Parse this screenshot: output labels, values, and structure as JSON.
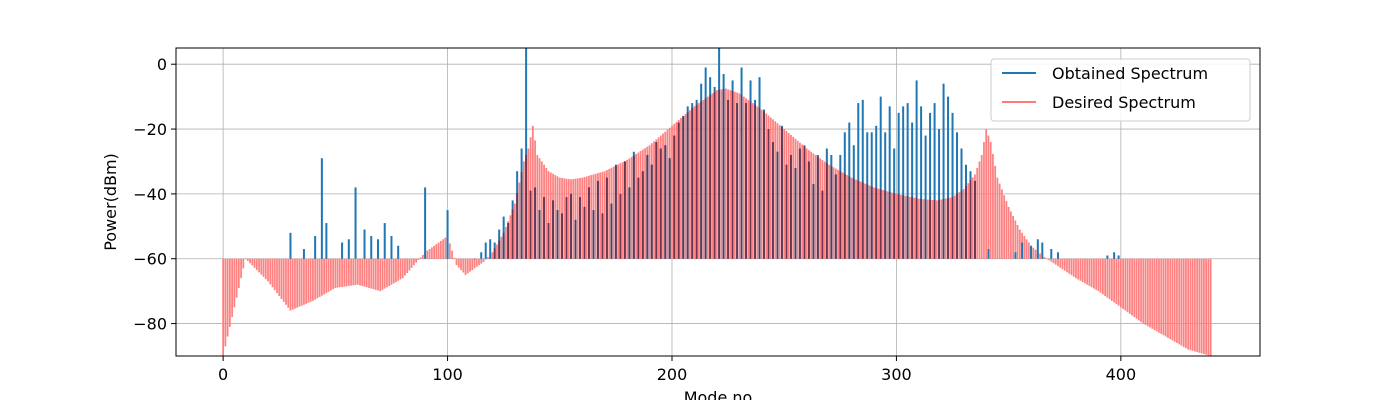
{
  "chart_data": {
    "type": "bar",
    "title": "",
    "xlabel": "Mode no",
    "ylabel": "Power(dBm)",
    "xlim": [
      -21,
      462
    ],
    "ylim": [
      -90,
      5
    ],
    "baseline": -60,
    "xticks": [
      0,
      100,
      200,
      300,
      400
    ],
    "yticks": [
      -80,
      -60,
      -40,
      -20,
      0
    ],
    "tick_labels_x": [
      "0",
      "100",
      "200",
      "300",
      "400"
    ],
    "tick_labels_y": [
      "−80",
      "−60",
      "−40",
      "−20",
      "0"
    ],
    "grid": true,
    "legend_position": "top-right",
    "series": [
      {
        "name": "Obtained Spectrum",
        "color": "#1f77b4",
        "style": "bars",
        "points": [
          [
            30,
            -52
          ],
          [
            36,
            -57
          ],
          [
            41,
            -53
          ],
          [
            44,
            -29
          ],
          [
            46,
            -49
          ],
          [
            53,
            -55
          ],
          [
            56,
            -54
          ],
          [
            59,
            -38
          ],
          [
            63,
            -51
          ],
          [
            66,
            -53
          ],
          [
            69,
            -54
          ],
          [
            72,
            -49
          ],
          [
            75,
            -53
          ],
          [
            78,
            -56
          ],
          [
            90,
            -38
          ],
          [
            100,
            -45
          ],
          [
            112,
            -60
          ],
          [
            115,
            -58
          ],
          [
            117,
            -55
          ],
          [
            119,
            -54
          ],
          [
            121,
            -55
          ],
          [
            123,
            -51
          ],
          [
            125,
            -47
          ],
          [
            127,
            -49
          ],
          [
            129,
            -42
          ],
          [
            131,
            -33
          ],
          [
            133,
            -26
          ],
          [
            135,
            5
          ],
          [
            137,
            -39
          ],
          [
            139,
            -38
          ],
          [
            141,
            -45
          ],
          [
            143,
            -41
          ],
          [
            145,
            -49
          ],
          [
            147,
            -42
          ],
          [
            149,
            -45
          ],
          [
            151,
            -46
          ],
          [
            153,
            -41
          ],
          [
            155,
            -40
          ],
          [
            157,
            -48
          ],
          [
            159,
            -41
          ],
          [
            161,
            -44
          ],
          [
            163,
            -38
          ],
          [
            165,
            -45
          ],
          [
            167,
            -36
          ],
          [
            169,
            -46
          ],
          [
            171,
            -35
          ],
          [
            173,
            -43
          ],
          [
            175,
            -31
          ],
          [
            177,
            -40
          ],
          [
            179,
            -30
          ],
          [
            181,
            -38
          ],
          [
            183,
            -27
          ],
          [
            185,
            -35
          ],
          [
            187,
            -33
          ],
          [
            189,
            -28
          ],
          [
            191,
            -31
          ],
          [
            193,
            -24
          ],
          [
            195,
            -26
          ],
          [
            197,
            -25
          ],
          [
            199,
            -29
          ],
          [
            201,
            -22
          ],
          [
            203,
            -18
          ],
          [
            205,
            -16
          ],
          [
            207,
            -13
          ],
          [
            209,
            -12
          ],
          [
            211,
            -11
          ],
          [
            213,
            -6
          ],
          [
            215,
            -1
          ],
          [
            217,
            -4
          ],
          [
            219,
            -7
          ],
          [
            221,
            5
          ],
          [
            223,
            -3
          ],
          [
            225,
            -11
          ],
          [
            227,
            -5
          ],
          [
            229,
            -12
          ],
          [
            231,
            -1
          ],
          [
            233,
            -12
          ],
          [
            235,
            -5
          ],
          [
            237,
            -11
          ],
          [
            239,
            -4
          ],
          [
            241,
            -14
          ],
          [
            243,
            -20
          ],
          [
            245,
            -24
          ],
          [
            247,
            -27
          ],
          [
            249,
            -19
          ],
          [
            251,
            -31
          ],
          [
            253,
            -28
          ],
          [
            255,
            -32
          ],
          [
            257,
            -26
          ],
          [
            259,
            -25
          ],
          [
            261,
            -30
          ],
          [
            263,
            -37
          ],
          [
            265,
            -28
          ],
          [
            267,
            -39
          ],
          [
            269,
            -26
          ],
          [
            271,
            -28
          ],
          [
            273,
            -34
          ],
          [
            275,
            -28
          ],
          [
            277,
            -21
          ],
          [
            279,
            -18
          ],
          [
            281,
            -25
          ],
          [
            283,
            -12
          ],
          [
            285,
            -11
          ],
          [
            287,
            -21
          ],
          [
            289,
            -21
          ],
          [
            291,
            -19
          ],
          [
            293,
            -10
          ],
          [
            295,
            -21
          ],
          [
            297,
            -13
          ],
          [
            299,
            -26
          ],
          [
            301,
            -15
          ],
          [
            303,
            -13
          ],
          [
            305,
            -12
          ],
          [
            307,
            -18
          ],
          [
            309,
            -5
          ],
          [
            311,
            -13
          ],
          [
            313,
            -22
          ],
          [
            315,
            -15
          ],
          [
            317,
            -12
          ],
          [
            319,
            -20
          ],
          [
            321,
            -6
          ],
          [
            323,
            -10
          ],
          [
            325,
            -15
          ],
          [
            327,
            -21
          ],
          [
            329,
            -26
          ],
          [
            331,
            -31
          ],
          [
            333,
            -33
          ],
          [
            335,
            -36
          ],
          [
            341,
            -57
          ],
          [
            353,
            -58
          ],
          [
            356,
            -55
          ],
          [
            360,
            -56
          ],
          [
            363,
            -54
          ],
          [
            365,
            -55
          ],
          [
            369,
            -57
          ],
          [
            372,
            -58
          ],
          [
            394,
            -59
          ],
          [
            397,
            -58
          ],
          [
            399,
            -59
          ]
        ]
      },
      {
        "name": "Desired Spectrum",
        "color": "#ff7b7b",
        "style": "bars",
        "points": [
          [
            0,
            -90
          ],
          [
            10,
            -60
          ],
          [
            20,
            -67
          ],
          [
            30,
            -76
          ],
          [
            40,
            -73
          ],
          [
            50,
            -69
          ],
          [
            60,
            -68
          ],
          [
            70,
            -70
          ],
          [
            80,
            -66
          ],
          [
            90,
            -58
          ],
          [
            100,
            -53
          ],
          [
            104,
            -62
          ],
          [
            108,
            -65
          ],
          [
            112,
            -63
          ],
          [
            116,
            -61
          ],
          [
            120,
            -58
          ],
          [
            125,
            -52
          ],
          [
            130,
            -43
          ],
          [
            134,
            -30
          ],
          [
            136,
            -26
          ],
          [
            138,
            -19
          ],
          [
            140,
            -28
          ],
          [
            145,
            -33
          ],
          [
            150,
            -35
          ],
          [
            155,
            -35.5
          ],
          [
            160,
            -35
          ],
          [
            170,
            -33
          ],
          [
            180,
            -29.5
          ],
          [
            190,
            -25
          ],
          [
            200,
            -19
          ],
          [
            210,
            -13
          ],
          [
            220,
            -8
          ],
          [
            224,
            -7.5
          ],
          [
            230,
            -9
          ],
          [
            240,
            -14
          ],
          [
            250,
            -20
          ],
          [
            260,
            -26
          ],
          [
            270,
            -31
          ],
          [
            280,
            -35
          ],
          [
            290,
            -38
          ],
          [
            300,
            -40
          ],
          [
            310,
            -41.5
          ],
          [
            318,
            -42
          ],
          [
            325,
            -41
          ],
          [
            330,
            -38.5
          ],
          [
            335,
            -34
          ],
          [
            338,
            -28
          ],
          [
            340,
            -20
          ],
          [
            342,
            -24
          ],
          [
            345,
            -35
          ],
          [
            350,
            -44
          ],
          [
            355,
            -51
          ],
          [
            360,
            -56
          ],
          [
            365,
            -59
          ],
          [
            367,
            -60
          ],
          [
            380,
            -66
          ],
          [
            390,
            -70
          ],
          [
            400,
            -75
          ],
          [
            410,
            -80
          ],
          [
            420,
            -84
          ],
          [
            430,
            -88
          ],
          [
            440,
            -90
          ]
        ]
      }
    ]
  }
}
